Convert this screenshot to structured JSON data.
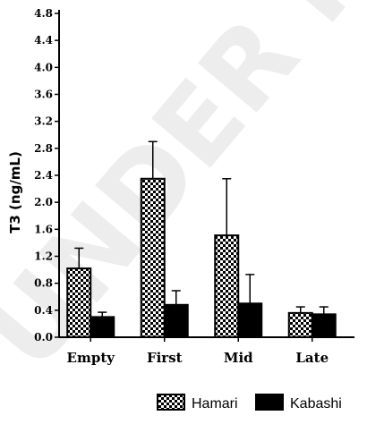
{
  "watermark_text": "UNDER P",
  "chart_data": {
    "type": "bar",
    "title": "",
    "xlabel": "",
    "ylabel": "T3 (ng/mL)",
    "ylim": [
      0,
      4.8
    ],
    "yticks": [
      "0.0",
      "0.4",
      "0.8",
      "1.2",
      "1.6",
      "2.0",
      "2.4",
      "2.8",
      "3.2",
      "3.6",
      "4.0",
      "4.4",
      "4.8"
    ],
    "categories": [
      "Empty",
      "First",
      "Mid",
      "Late"
    ],
    "legend_position": "bottom-right",
    "grid": false,
    "series": [
      {
        "name": "Hamari",
        "pattern": "checker",
        "color": "#000000",
        "values": [
          1.02,
          2.35,
          1.51,
          0.36
        ],
        "error": [
          0.3,
          0.55,
          0.84,
          0.09
        ]
      },
      {
        "name": "Kabashi",
        "pattern": "solid",
        "color": "#000000",
        "values": [
          0.3,
          0.48,
          0.5,
          0.34
        ],
        "error": [
          0.07,
          0.21,
          0.43,
          0.11
        ]
      }
    ]
  }
}
